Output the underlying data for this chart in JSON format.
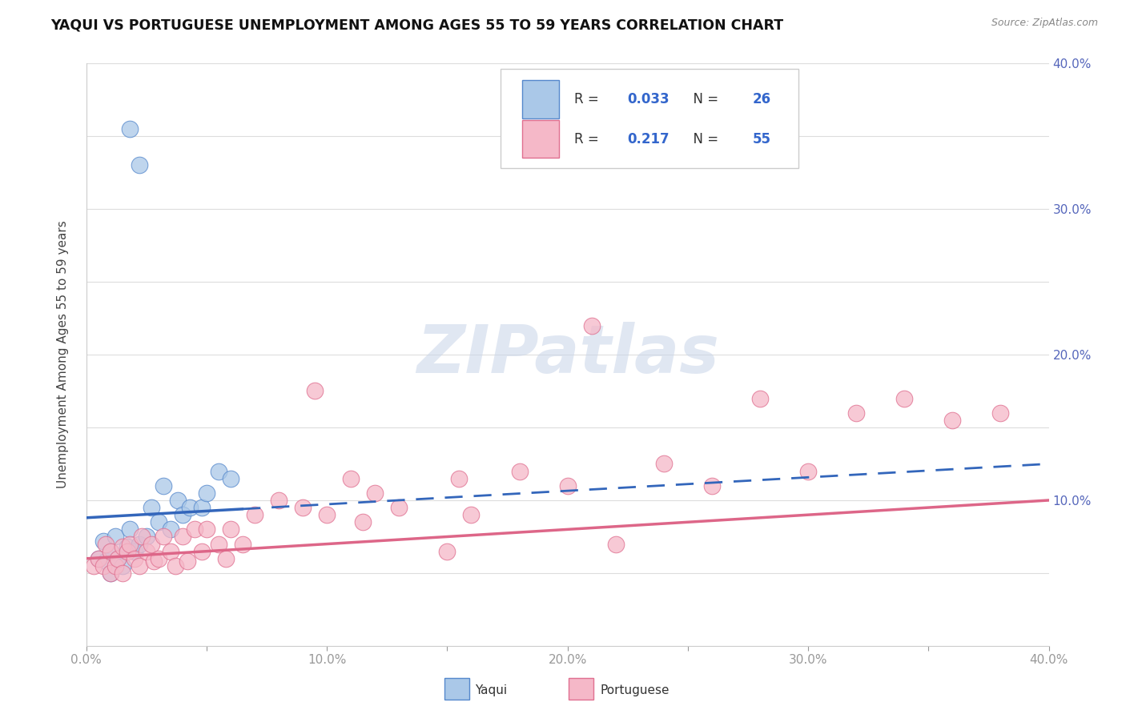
{
  "title": "YAQUI VS PORTUGUESE UNEMPLOYMENT AMONG AGES 55 TO 59 YEARS CORRELATION CHART",
  "source": "Source: ZipAtlas.com",
  "ylabel": "Unemployment Among Ages 55 to 59 years",
  "xlim": [
    0.0,
    0.4
  ],
  "ylim": [
    0.0,
    0.4
  ],
  "yaqui_R": 0.033,
  "yaqui_N": 26,
  "portuguese_R": 0.217,
  "portuguese_N": 55,
  "yaqui_fill_color": "#aac8e8",
  "yaqui_edge_color": "#5588cc",
  "portuguese_fill_color": "#f5b8c8",
  "portuguese_edge_color": "#e07090",
  "yaqui_line_color": "#3366bb",
  "portuguese_line_color": "#dd6688",
  "watermark": "ZIPatlas",
  "yaqui_x": [
    0.005,
    0.007,
    0.008,
    0.01,
    0.01,
    0.012,
    0.013,
    0.015,
    0.017,
    0.018,
    0.02,
    0.022,
    0.025,
    0.027,
    0.03,
    0.032,
    0.035,
    0.038,
    0.04,
    0.043,
    0.048,
    0.05,
    0.055,
    0.06,
    0.018,
    0.022
  ],
  "yaqui_y": [
    0.06,
    0.072,
    0.058,
    0.05,
    0.065,
    0.075,
    0.06,
    0.055,
    0.068,
    0.08,
    0.065,
    0.07,
    0.075,
    0.095,
    0.085,
    0.11,
    0.08,
    0.1,
    0.09,
    0.095,
    0.095,
    0.105,
    0.12,
    0.115,
    0.355,
    0.33
  ],
  "portuguese_x": [
    0.003,
    0.005,
    0.007,
    0.008,
    0.01,
    0.01,
    0.012,
    0.013,
    0.015,
    0.015,
    0.017,
    0.018,
    0.02,
    0.022,
    0.023,
    0.025,
    0.027,
    0.028,
    0.03,
    0.032,
    0.035,
    0.037,
    0.04,
    0.042,
    0.045,
    0.048,
    0.05,
    0.055,
    0.058,
    0.06,
    0.065,
    0.07,
    0.08,
    0.09,
    0.095,
    0.1,
    0.11,
    0.115,
    0.12,
    0.13,
    0.15,
    0.155,
    0.16,
    0.18,
    0.2,
    0.21,
    0.22,
    0.24,
    0.26,
    0.28,
    0.3,
    0.32,
    0.34,
    0.36,
    0.38
  ],
  "portuguese_y": [
    0.055,
    0.06,
    0.055,
    0.07,
    0.05,
    0.065,
    0.055,
    0.06,
    0.05,
    0.068,
    0.065,
    0.07,
    0.06,
    0.055,
    0.075,
    0.065,
    0.07,
    0.058,
    0.06,
    0.075,
    0.065,
    0.055,
    0.075,
    0.058,
    0.08,
    0.065,
    0.08,
    0.07,
    0.06,
    0.08,
    0.07,
    0.09,
    0.1,
    0.095,
    0.175,
    0.09,
    0.115,
    0.085,
    0.105,
    0.095,
    0.065,
    0.115,
    0.09,
    0.12,
    0.11,
    0.22,
    0.07,
    0.125,
    0.11,
    0.17,
    0.12,
    0.16,
    0.17,
    0.155,
    0.16
  ]
}
